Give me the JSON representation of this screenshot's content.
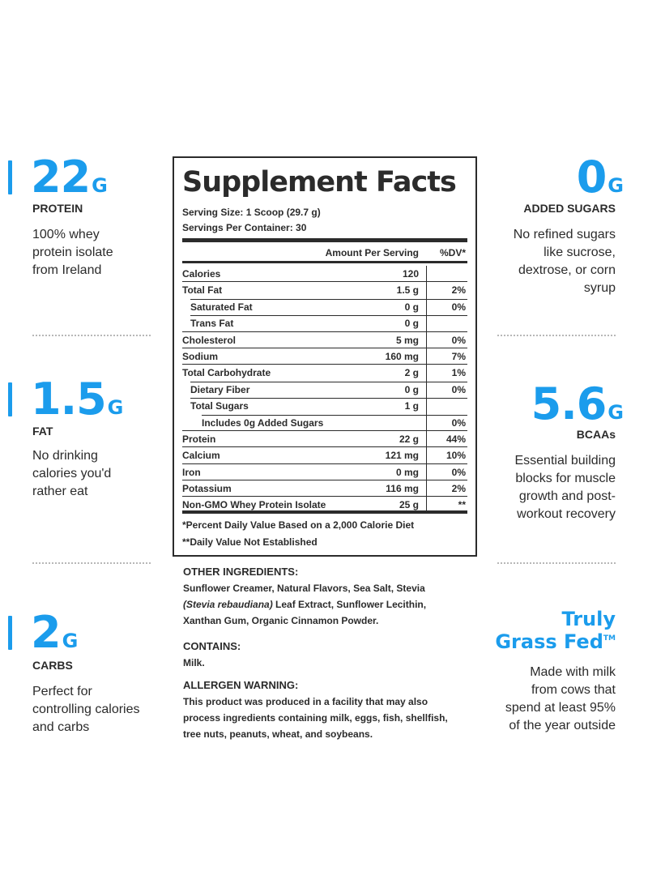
{
  "left": [
    {
      "value": "22",
      "unit": "G",
      "label": "PROTEIN",
      "desc": [
        "100% whey",
        "protein isolate",
        "from Ireland"
      ]
    },
    {
      "value": "1.5",
      "unit": "G",
      "label": "FAT",
      "desc": [
        "No drinking",
        "calories you'd",
        "rather eat"
      ]
    },
    {
      "value": "2",
      "unit": "G",
      "label": "CARBS",
      "desc": [
        "Perfect for",
        "controlling calories",
        "and carbs"
      ]
    }
  ],
  "right": [
    {
      "value": "0",
      "unit": "G",
      "label": "ADDED SUGARS",
      "desc": [
        "No refined sugars",
        "like sucrose,",
        "dextrose, or corn",
        "syrup"
      ]
    },
    {
      "value": "5.6",
      "unit": "G",
      "label": "BCAAs",
      "desc": [
        "Essential building",
        "blocks for muscle",
        "growth and post-",
        "workout recovery"
      ]
    },
    {
      "title_line1": "Truly",
      "title_line2": "Grass Fed",
      "tm": "TM",
      "desc": [
        "Made with milk",
        "from cows that",
        "spend at least 95%",
        "of the year outside"
      ]
    }
  ],
  "facts": {
    "title": "Supplement Facts",
    "serving_size": "Serving Size: 1 Scoop (29.7 g)",
    "servings_per_container": "Servings Per Container: 30",
    "col_amount": "Amount Per Serving",
    "col_dv": "%DV*",
    "rows": [
      {
        "name": "Calories",
        "amount": "120",
        "dv": ""
      },
      {
        "name": "Total Fat",
        "amount": "1.5 g",
        "dv": "2%"
      },
      {
        "name": "Saturated Fat",
        "amount": "0 g",
        "dv": "0%"
      },
      {
        "name": "Trans Fat",
        "amount": "0 g",
        "dv": ""
      },
      {
        "name": "Cholesterol",
        "amount": "5 mg",
        "dv": "0%"
      },
      {
        "name": "Sodium",
        "amount": "160 mg",
        "dv": "7%"
      },
      {
        "name": "Total Carbohydrate",
        "amount": "2 g",
        "dv": "1%"
      },
      {
        "name": "Dietary Fiber",
        "amount": "0 g",
        "dv": "0%"
      },
      {
        "name": "Total Sugars",
        "amount": "1 g",
        "dv": ""
      },
      {
        "name": "Includes 0g Added Sugars",
        "amount": "",
        "dv": "0%"
      },
      {
        "name": "Protein",
        "amount": "22 g",
        "dv": "44%"
      },
      {
        "name": "Calcium",
        "amount": "121 mg",
        "dv": "10%"
      },
      {
        "name": "Iron",
        "amount": "0 mg",
        "dv": "0%"
      },
      {
        "name": "Potassium",
        "amount": "116 mg",
        "dv": "2%"
      },
      {
        "name": "Non-GMO Whey Protein Isolate",
        "amount": "25 g",
        "dv": "**"
      }
    ],
    "footnote1": "*Percent Daily Value Based on a 2,000 Calorie Diet",
    "footnote2": "**Daily Value Not Established"
  },
  "ingredients": {
    "other_heading": "OTHER INGREDIENTS:",
    "other_line1": "Sunflower Creamer, Natural Flavors, Sea Salt, Stevia",
    "other_line2_italic": "(Stevia rebaudiana)",
    "other_line2_rest": " Leaf Extract, Sunflower Lecithin,",
    "other_line3": "Xanthan Gum, Organic Cinnamon Powder.",
    "contains_heading": "CONTAINS:",
    "contains_text": "Milk.",
    "allergen_heading": "ALLERGEN WARNING:",
    "allergen_lines": [
      "This product was produced in a facility that may also",
      "process ingredients containing milk, eggs, fish, shellfish,",
      "tree nuts, peanuts, wheat, and soybeans."
    ]
  },
  "colors": {
    "accent": "#1b9cec",
    "text": "#2b2b2b",
    "dots": "#b7b7b7"
  }
}
